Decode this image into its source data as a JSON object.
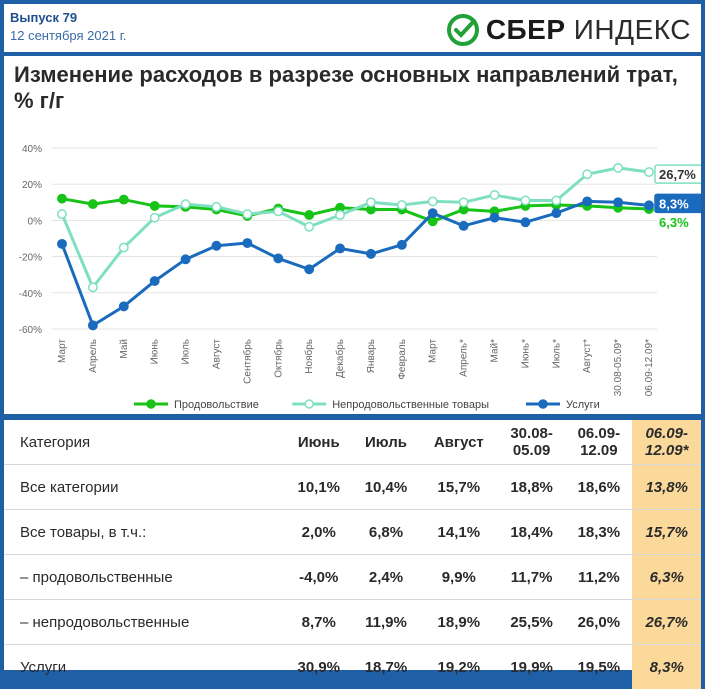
{
  "header": {
    "issue": "Выпуск 79",
    "date": "12 сентября 2021 г.",
    "logo_bold": "СБЕР",
    "logo_light": "ИНДЕКС"
  },
  "chart_data": {
    "type": "line",
    "title": "Изменение расходов в разрезе основных направлений трат, % г/г",
    "categories": [
      "Март",
      "Апрель",
      "Май",
      "Июнь",
      "Июль",
      "Август",
      "Сентябрь",
      "Октябрь",
      "Ноябрь",
      "Декабрь",
      "Январь",
      "Февраль",
      "Март",
      "Апрель*",
      "Май*",
      "Июнь*",
      "Июль*",
      "Август*",
      "30.08-05.09*",
      "06.09-12.09*"
    ],
    "ylim": [
      -60,
      40
    ],
    "yticks": [
      -60,
      -40,
      -20,
      0,
      20,
      40
    ],
    "ytick_labels": [
      "-60%",
      "-40%",
      "-20%",
      "0%",
      "20%",
      "40%"
    ],
    "grid": true,
    "legend_position": "bottom",
    "series": [
      {
        "name": "Продовольствие",
        "color": "#16c316",
        "marker": "filled",
        "values": [
          12,
          9,
          11.5,
          8,
          7.5,
          6,
          2.5,
          6.5,
          3,
          7,
          6,
          6,
          -0.5,
          6,
          5,
          8,
          8.5,
          8,
          7,
          6.3
        ]
      },
      {
        "name": "Непродовольственные товары",
        "color": "#7ee0c0",
        "marker": "hollow",
        "values": [
          3.5,
          -37,
          -15,
          1.5,
          9,
          7.5,
          3.5,
          5,
          -3.5,
          3,
          10,
          8.5,
          10.5,
          10,
          14,
          11,
          11,
          25.5,
          29,
          26.7
        ]
      },
      {
        "name": "Услуги",
        "color": "#1a6bbd",
        "marker": "filled",
        "values": [
          -13,
          -58,
          -47.5,
          -33.5,
          -21.5,
          -14,
          -12.5,
          -21,
          -27,
          -15.5,
          -18.5,
          -13.5,
          4,
          -3,
          1.5,
          -1,
          4,
          10.5,
          10,
          8.3
        ]
      }
    ],
    "end_labels": [
      {
        "series": "Непродовольственные товары",
        "text": "26,7%",
        "color": "#7ee0c0"
      },
      {
        "series": "Услуги",
        "text": "8,3%",
        "color": "#1a6bbd"
      },
      {
        "series": "Продовольствие",
        "text": "6,3%",
        "color": "#16c316"
      }
    ]
  },
  "table": {
    "header": [
      "Категория",
      "Июнь",
      "Июль",
      "Август",
      "30.08-\n05.09",
      "06.09-\n12.09",
      "06.09-\n12.09*"
    ],
    "rows": [
      [
        "Все категории",
        "10,1%",
        "10,4%",
        "15,7%",
        "18,8%",
        "18,6%",
        "13,8%"
      ],
      [
        "Все товары, в т.ч.:",
        "2,0%",
        "6,8%",
        "14,1%",
        "18,4%",
        "18,3%",
        "15,7%"
      ],
      [
        "– продовольственные",
        "-4,0%",
        "2,4%",
        "9,9%",
        "11,7%",
        "11,2%",
        "6,3%"
      ],
      [
        "– непродовольственные",
        "8,7%",
        "11,9%",
        "18,9%",
        "25,5%",
        "26,0%",
        "26,7%"
      ],
      [
        "Услуги",
        "30,9%",
        "18,7%",
        "19,2%",
        "19,9%",
        "19,5%",
        "8,3%"
      ]
    ],
    "highlight_color": "#fbd99b"
  }
}
